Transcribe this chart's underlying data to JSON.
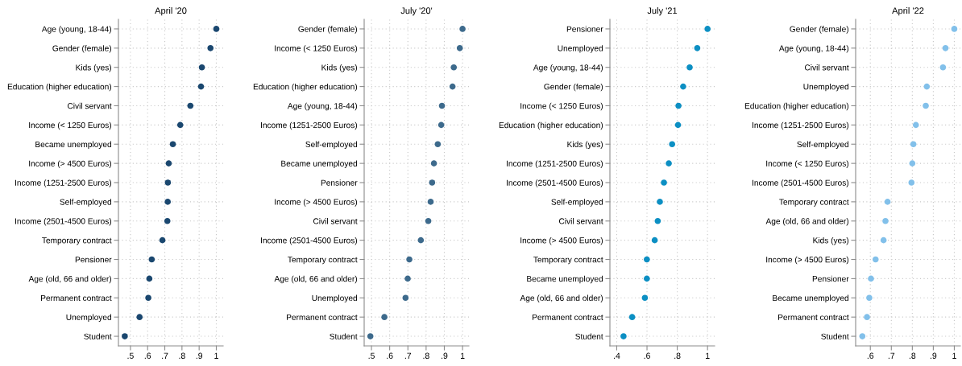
{
  "chart_data": [
    {
      "type": "scatter",
      "orientation": "horizontal",
      "title": "April '20",
      "grid": true,
      "marker": "circle",
      "xlim": [
        0.43,
        1.04
      ],
      "xticks": [
        {
          "value": 0.5,
          "label": ".5"
        },
        {
          "value": 0.6,
          "label": ".6"
        },
        {
          "value": 0.7,
          "label": ".7"
        },
        {
          "value": 0.8,
          "label": ".8"
        },
        {
          "value": 0.9,
          "label": ".9"
        },
        1
      ],
      "categories": [
        "Age (young, 18-44)",
        "Gender (female)",
        "Kids (yes)",
        "Education (higher education)",
        "Civil servant",
        "Income (< 1250 Euros)",
        "Became unemployed",
        "Income (> 4500 Euros)",
        "Income (1251-2500 Euros)",
        "Self-employed",
        "Income (2501-4500 Euros)",
        "Temporary contract",
        "Pensioner",
        "Age (old, 66 and older)",
        "Permanent contract",
        "Unemployed",
        "Student"
      ],
      "series": [
        {
          "color": "#1a476f",
          "values": [
            1.0,
            0.966,
            0.916,
            0.911,
            0.849,
            0.79,
            0.747,
            0.723,
            0.718,
            0.717,
            0.715,
            0.686,
            0.624,
            0.61,
            0.604,
            0.553,
            0.467
          ]
        }
      ]
    },
    {
      "type": "scatter",
      "orientation": "horizontal",
      "title": "July '20'",
      "grid": true,
      "marker": "circle",
      "xlim": [
        0.46,
        1.035
      ],
      "xticks": [
        {
          "value": 0.5,
          "label": ".5"
        },
        {
          "value": 0.6,
          "label": ".6"
        },
        {
          "value": 0.7,
          "label": ".7"
        },
        {
          "value": 0.8,
          "label": ".8"
        },
        {
          "value": 0.9,
          "label": ".9"
        },
        1
      ],
      "categories": [
        "Gender (female)",
        "Income (< 1250 Euros)",
        "Kids (yes)",
        "Education (higher education)",
        "Age (young, 18-44)",
        "Income (1251-2500 Euros)",
        "Self-employed",
        "Became unemployed",
        "Pensioner",
        "Income (> 4500 Euros)",
        "Civil servant",
        "Income (2501-4500 Euros)",
        "Temporary contract",
        "Age (old, 66 and older)",
        "Unemployed",
        "Permanent contract",
        "Student"
      ],
      "series": [
        {
          "color": "#3d6a8c",
          "values": [
            1.0,
            0.985,
            0.952,
            0.945,
            0.887,
            0.883,
            0.864,
            0.843,
            0.833,
            0.825,
            0.812,
            0.771,
            0.708,
            0.699,
            0.687,
            0.571,
            0.494
          ]
        }
      ]
    },
    {
      "type": "scatter",
      "orientation": "horizontal",
      "title": "July '21",
      "grid": true,
      "marker": "circle",
      "xlim": [
        0.355,
        1.047
      ],
      "xticks": [
        {
          "value": 0.4,
          "label": ".4"
        },
        {
          "value": 0.6,
          "label": ".6"
        },
        {
          "value": 0.8,
          "label": ".8"
        },
        1
      ],
      "categories": [
        "Pensioner",
        "Unemployed",
        "Age (young, 18-44)",
        "Gender (female)",
        "Income (< 1250 Euros)",
        "Education (higher education)",
        "Kids (yes)",
        "Income (1251-2500 Euros)",
        "Income (2501-4500 Euros)",
        "Self-employed",
        "Civil servant",
        "Income (> 4500 Euros)",
        "Temporary contract",
        "Became unemployed",
        "Age (old, 66 and older)",
        "Permanent contract",
        "Student"
      ],
      "series": [
        {
          "color": "#0c8fc3",
          "values": [
            1.0,
            0.932,
            0.882,
            0.839,
            0.808,
            0.805,
            0.766,
            0.744,
            0.712,
            0.685,
            0.671,
            0.651,
            0.599,
            0.599,
            0.586,
            0.502,
            0.445
          ]
        }
      ]
    },
    {
      "type": "scatter",
      "orientation": "horizontal",
      "title": "April '22",
      "grid": true,
      "marker": "circle",
      "xlim": [
        0.53,
        1.029
      ],
      "xticks": [
        {
          "value": 0.6,
          "label": ".6"
        },
        {
          "value": 0.7,
          "label": ".7"
        },
        {
          "value": 0.8,
          "label": ".8"
        },
        {
          "value": 0.9,
          "label": ".9"
        },
        1
      ],
      "categories": [
        "Gender (female)",
        "Age (young, 18-44)",
        "Civil servant",
        "Unemployed",
        "Education (higher education)",
        "Income (1251-2500 Euros)",
        "Self-employed",
        "Income (< 1250 Euros)",
        "Income (2501-4500 Euros)",
        "Temporary contract",
        "Age (old, 66 and older)",
        "Kids (yes)",
        "Income (> 4500 Euros)",
        "Pensioner",
        "Became unemployed",
        "Permanent contract",
        "Student"
      ],
      "series": [
        {
          "color": "#82c0ea",
          "values": [
            1.0,
            0.958,
            0.946,
            0.869,
            0.864,
            0.817,
            0.805,
            0.8,
            0.796,
            0.682,
            0.672,
            0.663,
            0.625,
            0.603,
            0.595,
            0.584,
            0.562
          ]
        }
      ]
    }
  ]
}
